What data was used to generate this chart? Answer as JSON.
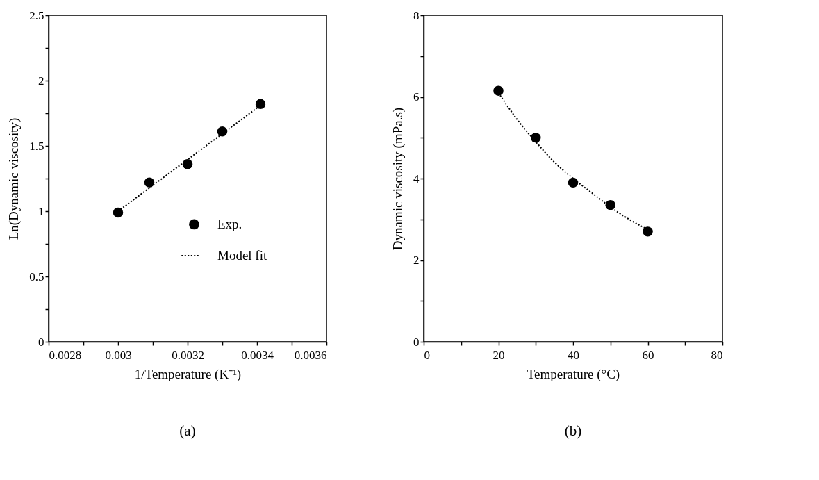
{
  "chart_data": [
    {
      "type": "scatter",
      "xlabel": "1/Temperature (K⁻¹)",
      "ylabel": "Ln(Dynamic  viscosity)",
      "annotations": [
        "(a)"
      ],
      "grid": false,
      "legend": "right",
      "xlim": [
        0.0028,
        0.0036
      ],
      "xticks": [
        0.0028,
        {
          "value": 0.0029,
          "label": null
        },
        0.003,
        {
          "value": 0.0031,
          "label": null
        },
        0.0032,
        {
          "value": 0.0033,
          "label": null
        },
        0.0034,
        {
          "value": 0.0035,
          "label": null
        },
        0.0036
      ],
      "ylim": [
        0,
        2.5
      ],
      "yticks": [
        0,
        {
          "value": 0.25,
          "label": null
        },
        0.5,
        {
          "value": 0.75,
          "label": null
        },
        1,
        {
          "value": 1.25,
          "label": null
        },
        1.5,
        {
          "value": 1.75,
          "label": null
        },
        2,
        {
          "value": 2.25,
          "label": null
        },
        2.5
      ],
      "series": [
        {
          "type": "scatter",
          "name": "Exp.",
          "color": "#000000",
          "marker": "circle",
          "x": [
            0.003,
            0.00309,
            0.0032,
            0.0033,
            0.00341
          ],
          "values": [
            0.99,
            1.22,
            1.36,
            1.61,
            1.82
          ]
        },
        {
          "type": "line",
          "name": "Model fit",
          "color": "#000000",
          "line_style": "dotted",
          "x": [
            0.003,
            0.00341
          ],
          "values": [
            1.0,
            1.81
          ]
        }
      ]
    },
    {
      "type": "scatter",
      "xlabel": "Temperature (°C)",
      "ylabel": "Dynamic  viscosity (mPa.s)",
      "annotations": [
        "(b)"
      ],
      "grid": false,
      "legend": "left",
      "xlim": [
        0,
        80
      ],
      "xticks": [
        0,
        {
          "value": 10,
          "label": null
        },
        20,
        {
          "value": 30,
          "label": null
        },
        40,
        {
          "value": 50,
          "label": null
        },
        60,
        {
          "value": 70,
          "label": null
        },
        80
      ],
      "ylim": [
        0,
        8
      ],
      "yticks": [
        0,
        {
          "value": 1,
          "label": null
        },
        2,
        {
          "value": 3,
          "label": null
        },
        4,
        {
          "value": 5,
          "label": null
        },
        6,
        {
          "value": 7,
          "label": null
        },
        8
      ],
      "series": [
        {
          "type": "scatter",
          "name": "Exp.",
          "color": "#000000",
          "marker": "circle",
          "x": [
            20,
            30,
            40,
            50,
            60
          ],
          "values": [
            6.15,
            5.0,
            3.9,
            3.35,
            2.7
          ]
        },
        {
          "type": "line",
          "name": "Model fit",
          "color": "#000000",
          "line_style": "dotted",
          "x": [
            20,
            25,
            30,
            35,
            40,
            45,
            50,
            55,
            60
          ],
          "values": [
            6.1,
            5.45,
            4.9,
            4.4,
            4.0,
            3.65,
            3.3,
            3.0,
            2.75
          ]
        }
      ]
    }
  ]
}
